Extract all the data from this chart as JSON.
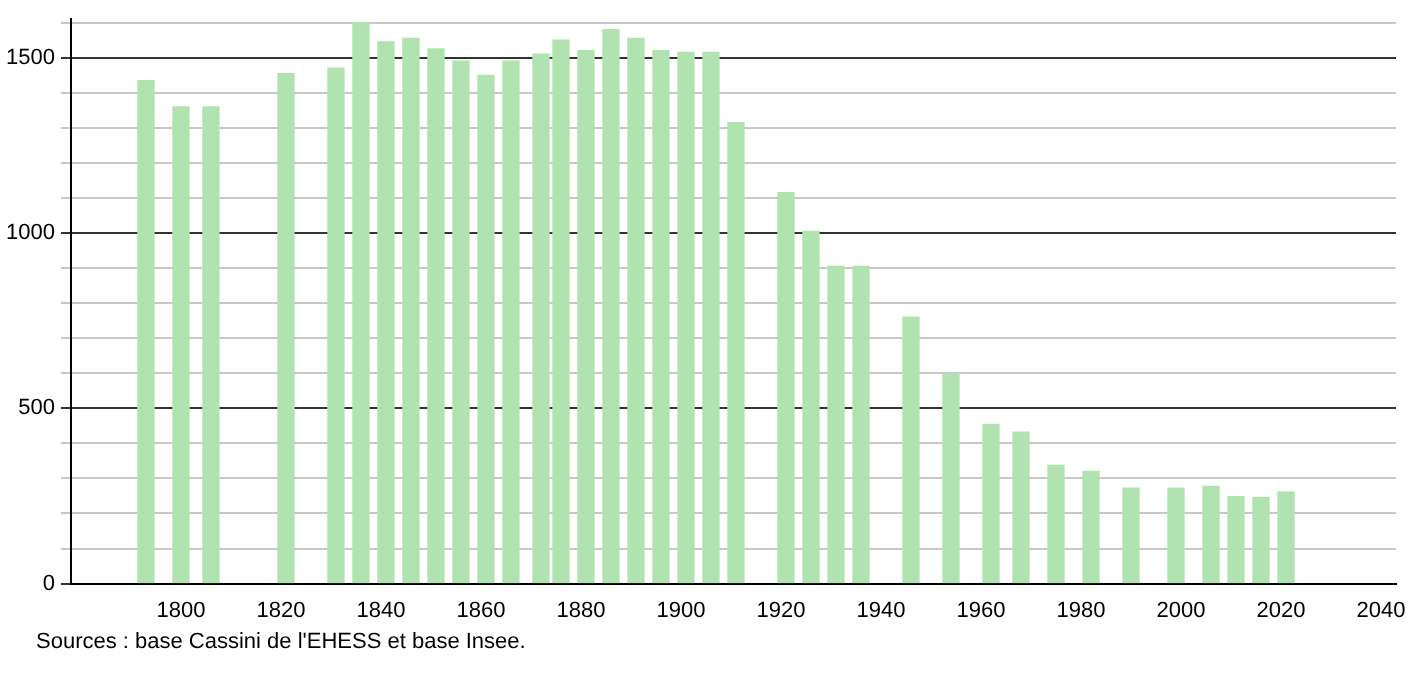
{
  "chart_data": {
    "type": "bar",
    "x": [
      1793,
      1800,
      1806,
      1821,
      1831,
      1836,
      1841,
      1846,
      1851,
      1856,
      1861,
      1866,
      1872,
      1876,
      1881,
      1886,
      1891,
      1896,
      1901,
      1906,
      1911,
      1921,
      1926,
      1931,
      1936,
      1946,
      1954,
      1962,
      1968,
      1975,
      1982,
      1990,
      1999,
      2006,
      2011,
      2016,
      2021
    ],
    "values": [
      1435,
      1360,
      1360,
      1455,
      1470,
      1600,
      1545,
      1555,
      1525,
      1490,
      1450,
      1490,
      1510,
      1550,
      1520,
      1580,
      1555,
      1520,
      1515,
      1515,
      1315,
      1115,
      1005,
      905,
      905,
      760,
      598,
      454,
      432,
      337,
      320,
      272,
      272,
      277,
      248,
      245,
      261
    ],
    "color": "#b0e3b0",
    "xlim": [
      1778,
      2043
    ],
    "xticks": [
      1800,
      1820,
      1840,
      1860,
      1880,
      1900,
      1920,
      1940,
      1960,
      1980,
      2000,
      2020,
      2040
    ],
    "ylim": [
      0,
      1610
    ],
    "yticks": [
      0,
      {
        "value": 100,
        "label": null
      },
      {
        "value": 200,
        "label": null
      },
      {
        "value": 300,
        "label": null
      },
      {
        "value": 400,
        "label": null
      },
      500,
      {
        "value": 600,
        "label": null
      },
      {
        "value": 700,
        "label": null
      },
      {
        "value": 800,
        "label": null
      },
      {
        "value": 900,
        "label": null
      },
      1000,
      {
        "value": 1100,
        "label": null
      },
      {
        "value": 1200,
        "label": null
      },
      {
        "value": 1300,
        "label": null
      },
      {
        "value": 1400,
        "label": null
      },
      1500,
      {
        "value": 1600,
        "label": null
      }
    ],
    "grid": "y",
    "annotations": [
      "Sources : base Cassini de l'EHESS et base Insee."
    ]
  }
}
